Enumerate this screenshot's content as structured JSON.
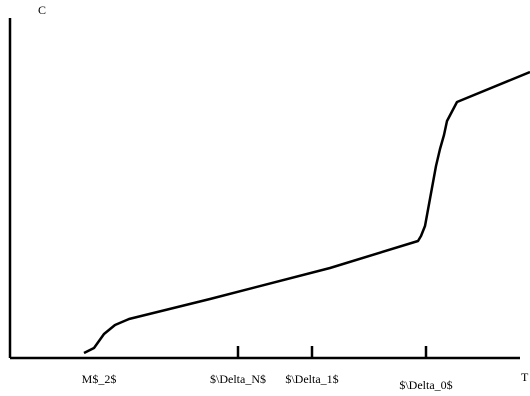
{
  "chart_data": {
    "type": "line",
    "title": "",
    "xlabel": "T",
    "ylabel": "C",
    "xlim": [
      0,
      520
    ],
    "ylim": [
      0,
      340
    ],
    "grid": false,
    "legend": "none",
    "line_color": "#000000",
    "tick_labels": [
      {
        "text": "M$_2$",
        "x": 89
      },
      {
        "text": "$\\Delta_N$",
        "x": 228
      },
      {
        "text": "$\\Delta_1$",
        "x": 302
      },
      {
        "text": "$\\Delta_0$",
        "x": 416
      }
    ],
    "major_ticks": [
      228,
      302,
      416
    ],
    "series": [
      {
        "points": [
          [
            74,
            5
          ],
          [
            84,
            10
          ],
          [
            94,
            24
          ],
          [
            105,
            33
          ],
          [
            119,
            39
          ],
          [
            200,
            59
          ],
          [
            320,
            90
          ],
          [
            408,
            117
          ],
          [
            411,
            122
          ],
          [
            415,
            132
          ],
          [
            426,
            192
          ],
          [
            430,
            209
          ],
          [
            434,
            223
          ],
          [
            437,
            237
          ],
          [
            447,
            256
          ],
          [
            520,
            286
          ]
        ]
      }
    ]
  }
}
